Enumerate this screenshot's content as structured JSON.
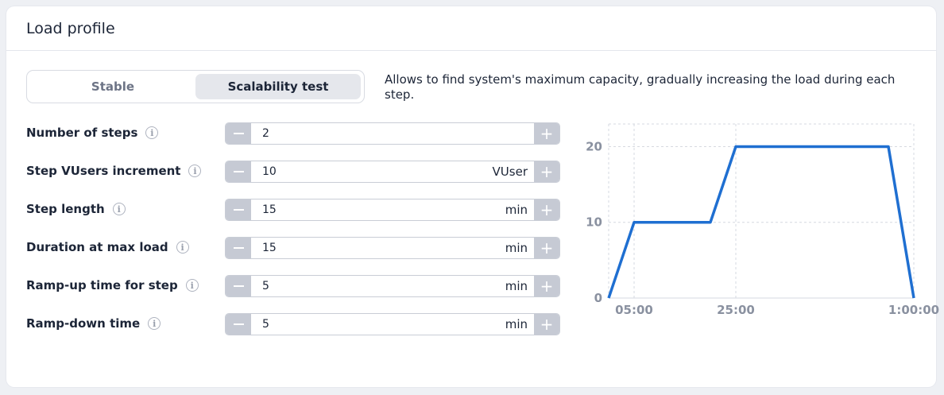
{
  "title": "Load profile",
  "mode_tabs": [
    "Stable",
    "Scalability test"
  ],
  "active_tab": "Scalability test",
  "description": "Allows to find system's maximum capacity, gradually increasing the load during each step.",
  "fields": [
    {
      "label": "Number of steps",
      "value": "2",
      "unit": ""
    },
    {
      "label": "Step VUsers increment",
      "value": "10",
      "unit": "VUser"
    },
    {
      "label": "Step length",
      "value": "15",
      "unit": "min"
    },
    {
      "label": "Duration at max load",
      "value": "15",
      "unit": "min"
    },
    {
      "label": "Ramp-up time for step",
      "value": "5",
      "unit": "min"
    },
    {
      "label": "Ramp-down time",
      "value": "5",
      "unit": "min"
    }
  ],
  "info_icon": "info-icon",
  "colors": {
    "line": "#1f6fd1",
    "grid": "#d6d9e0",
    "stepper_btn": "#c6cad4"
  },
  "chart_data": {
    "type": "line",
    "x_ticks": [
      "05:00",
      "25:00",
      "1:00:00"
    ],
    "y_ticks": [
      "0",
      "10",
      "20"
    ],
    "ylim": [
      0,
      20
    ],
    "xlim_minutes": [
      0,
      60
    ],
    "grid": true,
    "series": [
      {
        "x_minutes": [
          0,
          5,
          20,
          25,
          55,
          60
        ],
        "values": [
          0,
          10,
          10,
          20,
          20,
          0
        ]
      }
    ]
  }
}
